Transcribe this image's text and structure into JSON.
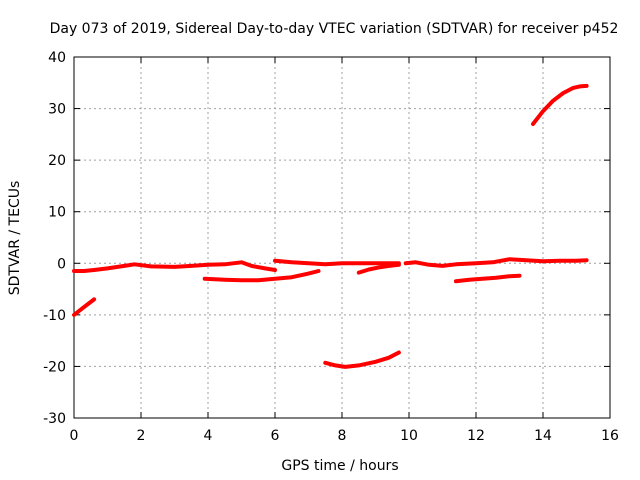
{
  "chart_data": {
    "type": "line",
    "title": "Day 073 of 2019, Sidereal Day-to-day VTEC variation (SDTVAR) for receiver p452",
    "xlabel": "GPS time / hours",
    "ylabel": "SDTVAR / TECUs",
    "xlim": [
      0,
      16
    ],
    "ylim": [
      -30,
      40
    ],
    "xticks": [
      0,
      2,
      4,
      6,
      8,
      10,
      12,
      14,
      16
    ],
    "yticks": [
      -30,
      -20,
      -10,
      0,
      10,
      20,
      30,
      40
    ],
    "xtick_labels": [
      "0",
      "2",
      "4",
      "6",
      "8",
      "10",
      "12",
      "14",
      "16"
    ],
    "ytick_labels": [
      "-30",
      "-20",
      "-10",
      "0",
      "10",
      "20",
      "30",
      "40"
    ],
    "grid": true,
    "legend": "none",
    "color": "#ff0000",
    "series": [
      {
        "x": [
          0,
          0.3,
          0.6,
          1.0,
          1.5,
          1.8,
          2.3,
          3.0,
          3.5,
          4.0,
          4.5,
          5.0,
          5.3,
          5.7,
          6.0
        ],
        "y": [
          -1.5,
          -1.5,
          -1.3,
          -1.0,
          -0.5,
          -0.2,
          -0.6,
          -0.7,
          -0.5,
          -0.3,
          -0.2,
          0.2,
          -0.5,
          -1.0,
          -1.3
        ]
      },
      {
        "x": [
          0,
          0.3,
          0.6
        ],
        "y": [
          -10,
          -8.5,
          -7
        ]
      },
      {
        "x": [
          3.9,
          4.5,
          5.0,
          5.5,
          6.0,
          6.5,
          7.0,
          7.3
        ],
        "y": [
          -3.0,
          -3.2,
          -3.3,
          -3.3,
          -3.0,
          -2.7,
          -2.0,
          -1.5
        ]
      },
      {
        "x": [
          6.0,
          6.5,
          7.0,
          7.5,
          8.0,
          8.5,
          9.0,
          9.5,
          9.7
        ],
        "y": [
          0.5,
          0.2,
          0,
          -0.2,
          0,
          0,
          0,
          0,
          0
        ]
      },
      {
        "x": [
          7.5,
          7.8,
          8.1,
          8.5,
          9.0,
          9.4,
          9.7
        ],
        "y": [
          -19.3,
          -19.8,
          -20.1,
          -19.8,
          -19.1,
          -18.3,
          -17.3
        ]
      },
      {
        "x": [
          8.5,
          8.8,
          9.1,
          9.4,
          9.7
        ],
        "y": [
          -1.8,
          -1.2,
          -0.8,
          -0.5,
          -0.3
        ]
      },
      {
        "x": [
          9.9,
          10.2,
          10.6,
          11.0,
          11.4,
          12.0,
          12.5,
          13.0,
          13.5,
          14.0,
          14.5,
          15.0,
          15.3
        ],
        "y": [
          0,
          0.2,
          -0.3,
          -0.5,
          -0.2,
          0,
          0.2,
          0.8,
          0.6,
          0.4,
          0.5,
          0.5,
          0.6
        ]
      },
      {
        "x": [
          11.4,
          11.8,
          12.2,
          12.6,
          13.0,
          13.3
        ],
        "y": [
          -3.5,
          -3.2,
          -3.0,
          -2.8,
          -2.5,
          -2.4
        ]
      },
      {
        "x": [
          13.7,
          14.0,
          14.3,
          14.6,
          14.9,
          15.1,
          15.3
        ],
        "y": [
          27.0,
          29.5,
          31.5,
          33.0,
          34.0,
          34.3,
          34.4
        ]
      }
    ]
  }
}
